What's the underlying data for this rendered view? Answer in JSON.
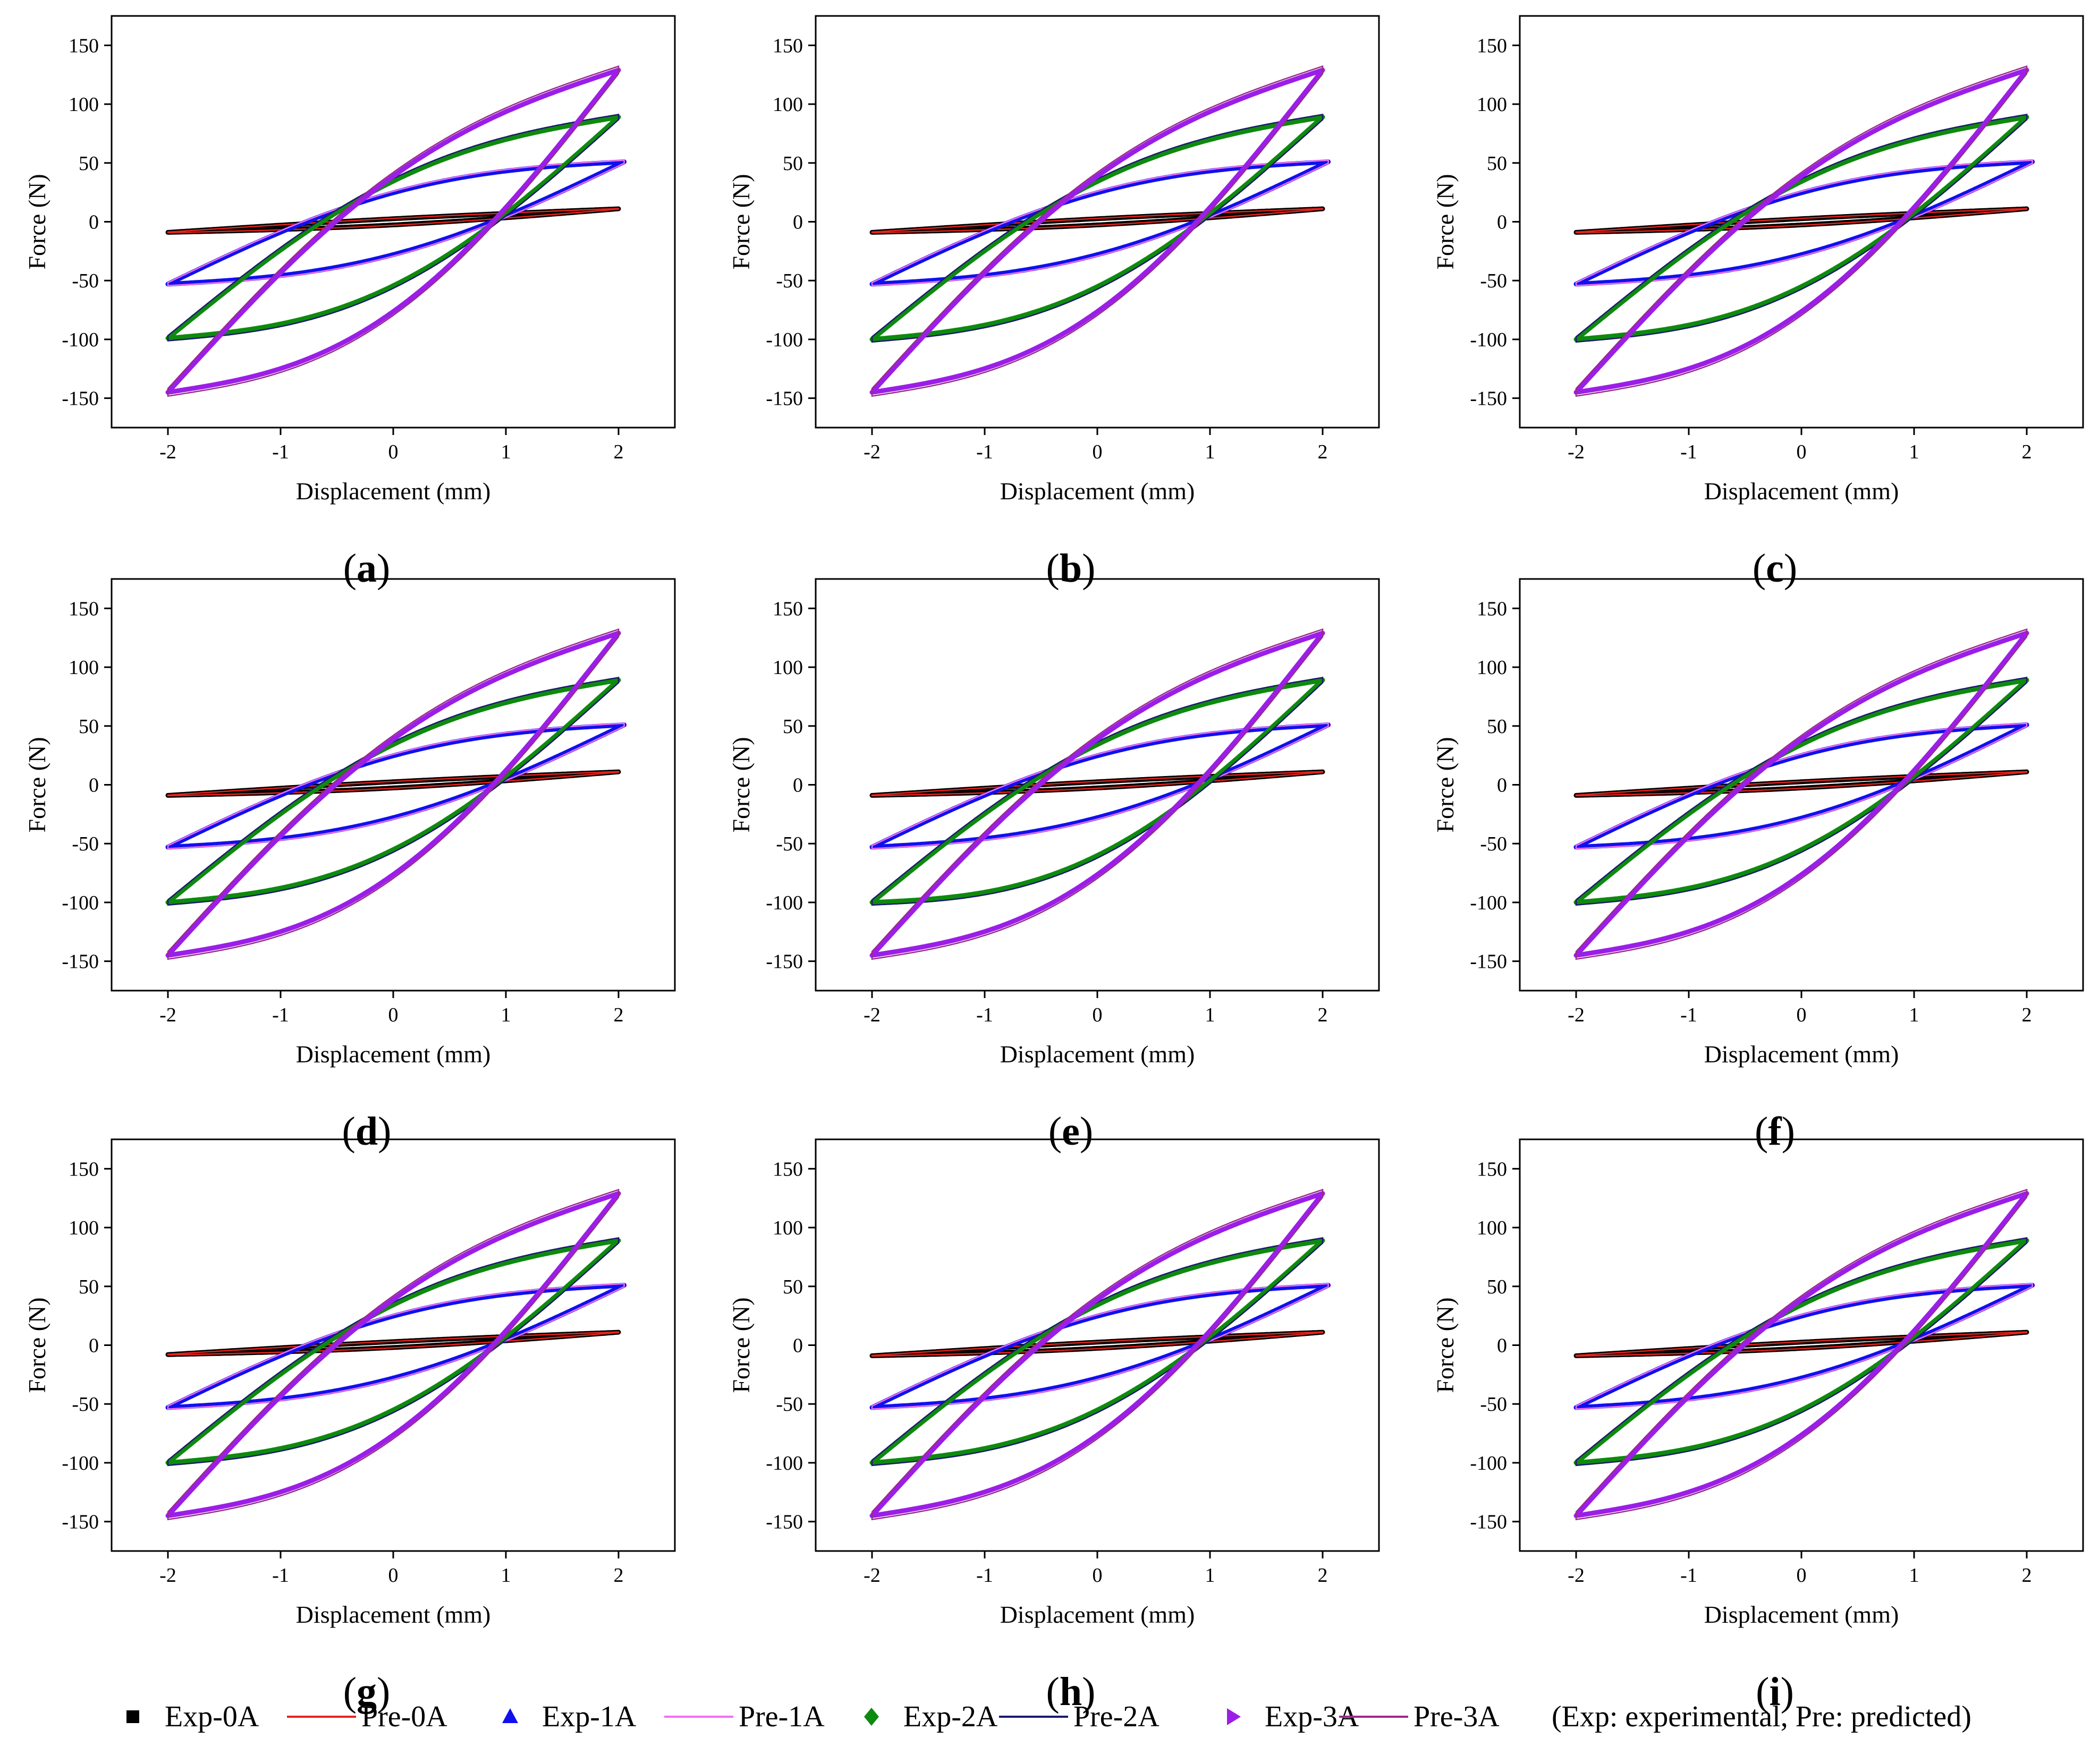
{
  "figure": {
    "legend": {
      "items": [
        {
          "label": "Exp-0A",
          "kind": "marker",
          "marker": "square",
          "color": "#000000"
        },
        {
          "label": "Pre-0A",
          "kind": "line",
          "color": "#e8231b"
        },
        {
          "label": "Exp-1A",
          "kind": "marker",
          "marker": "triangle-up",
          "color": "#1010ee"
        },
        {
          "label": "Pre-1A",
          "kind": "line",
          "color": "#f070f0"
        },
        {
          "label": "Exp-2A",
          "kind": "marker",
          "marker": "diamond",
          "color": "#0e8a0e"
        },
        {
          "label": "Pre-2A",
          "kind": "line",
          "color": "#1a1a6e"
        },
        {
          "label": "Exp-3A",
          "kind": "marker",
          "marker": "triangle-right",
          "color": "#9b1ee8"
        },
        {
          "label": "Pre-3A",
          "kind": "line",
          "color": "#9a2a8a"
        }
      ],
      "note": "(Exp: experimental, Pre: predicted)"
    }
  },
  "chart_data": [
    {
      "type": "line",
      "panel": "a",
      "label_open": "(",
      "label_letter": "a",
      "label_close": ")",
      "xlabel": "Displacement (mm)",
      "ylabel": "Force (N)",
      "xlim": [
        -2.5,
        2.5
      ],
      "ylim": [
        -175,
        175
      ],
      "xticks": [
        -2,
        -1,
        0,
        1,
        2
      ],
      "xtick_labels": [
        "-2",
        "-1",
        "0",
        "1",
        "2"
      ],
      "yticks": [
        -150,
        -100,
        -50,
        0,
        50,
        100,
        150
      ],
      "ytick_labels": [
        "-150",
        "-100",
        "-50",
        "0",
        "50",
        "100",
        "150"
      ],
      "series": [
        {
          "id": "0A",
          "x_min": -2.0,
          "x_max": 2.0,
          "f_min": -9,
          "f_max": 11,
          "zero_cross_up": -0.3,
          "zero_cross_down": 0.7,
          "exp_color": "#000000",
          "pre_color": "#e8231b"
        },
        {
          "id": "1A",
          "x_min": -2.0,
          "x_max": 2.05,
          "f_min": -53,
          "f_max": 51,
          "zero_cross_up": -0.95,
          "zero_cross_down": 1.0,
          "exp_color": "#1010ee",
          "pre_color": "#f070f0"
        },
        {
          "id": "2A",
          "x_min": -2.0,
          "x_max": 2.0,
          "f_min": -99,
          "f_max": 89,
          "zero_cross_up": -0.8,
          "zero_cross_down": 1.0,
          "exp_color": "#0e8a0e",
          "pre_color": "#1a1a6e"
        },
        {
          "id": "3A",
          "x_min": -2.0,
          "x_max": 2.0,
          "f_min": -145,
          "f_max": 129,
          "zero_cross_up": -0.65,
          "zero_cross_down": 0.95,
          "exp_color": "#9b1ee8",
          "pre_color": "#9a2a8a"
        }
      ]
    },
    {
      "type": "line",
      "panel": "b",
      "label_open": "(",
      "label_letter": "b",
      "label_close": ")",
      "xlabel": "Displacement (mm)",
      "ylabel": "Force (N)",
      "xlim": [
        -2.5,
        2.5
      ],
      "ylim": [
        -175,
        175
      ],
      "xticks": [
        -2,
        -1,
        0,
        1,
        2
      ],
      "xtick_labels": [
        "-2",
        "-1",
        "0",
        "1",
        "2"
      ],
      "yticks": [
        -150,
        -100,
        -50,
        0,
        50,
        100,
        150
      ],
      "ytick_labels": [
        "-150",
        "-100",
        "-50",
        "0",
        "50",
        "100",
        "150"
      ],
      "series": [
        {
          "id": "0A",
          "x_min": -2.0,
          "x_max": 2.0,
          "f_min": -9,
          "f_max": 11,
          "zero_cross_up": -0.3,
          "zero_cross_down": 0.7,
          "exp_color": "#000000",
          "pre_color": "#e8231b"
        },
        {
          "id": "1A",
          "x_min": -2.0,
          "x_max": 2.05,
          "f_min": -53,
          "f_max": 51,
          "zero_cross_up": -0.95,
          "zero_cross_down": 1.0,
          "exp_color": "#1010ee",
          "pre_color": "#f070f0"
        },
        {
          "id": "2A",
          "x_min": -2.0,
          "x_max": 2.0,
          "f_min": -100,
          "f_max": 89,
          "zero_cross_up": -0.8,
          "zero_cross_down": 1.0,
          "exp_color": "#0e8a0e",
          "pre_color": "#1a1a6e"
        },
        {
          "id": "3A",
          "x_min": -2.0,
          "x_max": 2.0,
          "f_min": -145,
          "f_max": 129,
          "zero_cross_up": -0.65,
          "zero_cross_down": 0.95,
          "exp_color": "#9b1ee8",
          "pre_color": "#9a2a8a"
        }
      ]
    },
    {
      "type": "line",
      "panel": "c",
      "label_open": "(",
      "label_letter": "c",
      "label_close": ")",
      "xlabel": "Displacement (mm)",
      "ylabel": "Force (N)",
      "xlim": [
        -2.5,
        2.5
      ],
      "ylim": [
        -175,
        175
      ],
      "xticks": [
        -2,
        -1,
        0,
        1,
        2
      ],
      "xtick_labels": [
        "-2",
        "-1",
        "0",
        "1",
        "2"
      ],
      "yticks": [
        -150,
        -100,
        -50,
        0,
        50,
        100,
        150
      ],
      "ytick_labels": [
        "-150",
        "-100",
        "-50",
        "0",
        "50",
        "100",
        "150"
      ],
      "series": [
        {
          "id": "0A",
          "x_min": -2.0,
          "x_max": 2.0,
          "f_min": -9,
          "f_max": 11,
          "zero_cross_up": -0.3,
          "zero_cross_down": 0.7,
          "exp_color": "#000000",
          "pre_color": "#e8231b"
        },
        {
          "id": "1A",
          "x_min": -2.0,
          "x_max": 2.05,
          "f_min": -53,
          "f_max": 51,
          "zero_cross_up": -0.95,
          "zero_cross_down": 1.0,
          "exp_color": "#1010ee",
          "pre_color": "#f070f0"
        },
        {
          "id": "2A",
          "x_min": -2.0,
          "x_max": 2.0,
          "f_min": -100,
          "f_max": 89,
          "zero_cross_up": -0.8,
          "zero_cross_down": 1.0,
          "exp_color": "#0e8a0e",
          "pre_color": "#1a1a6e"
        },
        {
          "id": "3A",
          "x_min": -2.0,
          "x_max": 2.0,
          "f_min": -145,
          "f_max": 129,
          "zero_cross_up": -0.65,
          "zero_cross_down": 0.95,
          "exp_color": "#9b1ee8",
          "pre_color": "#9a2a8a"
        }
      ]
    },
    {
      "type": "line",
      "panel": "d",
      "label_open": "(",
      "label_letter": "d",
      "label_close": ")",
      "xlabel": "Displacement (mm)",
      "ylabel": "Force (N)",
      "xlim": [
        -2.5,
        2.5
      ],
      "ylim": [
        -175,
        175
      ],
      "xticks": [
        -2,
        -1,
        0,
        1,
        2
      ],
      "xtick_labels": [
        "-2",
        "-1",
        "0",
        "1",
        "2"
      ],
      "yticks": [
        -150,
        -100,
        -50,
        0,
        50,
        100,
        150
      ],
      "ytick_labels": [
        "-150",
        "-100",
        "-50",
        "0",
        "50",
        "100",
        "150"
      ],
      "series": [
        {
          "id": "0A",
          "x_min": -2.0,
          "x_max": 2.0,
          "f_min": -9,
          "f_max": 11,
          "zero_cross_up": -0.3,
          "zero_cross_down": 0.7,
          "exp_color": "#000000",
          "pre_color": "#e8231b"
        },
        {
          "id": "1A",
          "x_min": -2.0,
          "x_max": 2.05,
          "f_min": -53,
          "f_max": 51,
          "zero_cross_up": -0.95,
          "zero_cross_down": 1.0,
          "exp_color": "#1010ee",
          "pre_color": "#f070f0"
        },
        {
          "id": "2A",
          "x_min": -2.0,
          "x_max": 2.0,
          "f_min": -100,
          "f_max": 89,
          "zero_cross_up": -0.8,
          "zero_cross_down": 1.0,
          "exp_color": "#0e8a0e",
          "pre_color": "#1a1a6e"
        },
        {
          "id": "3A",
          "x_min": -2.0,
          "x_max": 2.0,
          "f_min": -145,
          "f_max": 129,
          "zero_cross_up": -0.65,
          "zero_cross_down": 0.95,
          "exp_color": "#9b1ee8",
          "pre_color": "#9a2a8a"
        }
      ]
    },
    {
      "type": "line",
      "panel": "e",
      "label_open": "(",
      "label_letter": "e",
      "label_close": ")",
      "xlabel": "Displacement (mm)",
      "ylabel": "Force (N)",
      "xlim": [
        -2.5,
        2.5
      ],
      "ylim": [
        -175,
        175
      ],
      "xticks": [
        -2,
        -1,
        0,
        1,
        2
      ],
      "xtick_labels": [
        "-2",
        "-1",
        "0",
        "1",
        "2"
      ],
      "yticks": [
        -150,
        -100,
        -50,
        0,
        50,
        100,
        150
      ],
      "ytick_labels": [
        "-150",
        "-100",
        "-50",
        "0",
        "50",
        "100",
        "150"
      ],
      "series": [
        {
          "id": "0A",
          "x_min": -2.0,
          "x_max": 2.0,
          "f_min": -9,
          "f_max": 11,
          "zero_cross_up": -0.3,
          "zero_cross_down": 0.7,
          "exp_color": "#000000",
          "pre_color": "#e8231b"
        },
        {
          "id": "1A",
          "x_min": -2.0,
          "x_max": 2.05,
          "f_min": -53,
          "f_max": 51,
          "zero_cross_up": -0.95,
          "zero_cross_down": 1.0,
          "exp_color": "#1010ee",
          "pre_color": "#f070f0"
        },
        {
          "id": "2A",
          "x_min": -2.0,
          "x_max": 2.0,
          "f_min": -100,
          "f_max": 89,
          "zero_cross_up": -0.8,
          "zero_cross_down": 1.1,
          "exp_color": "#0e8a0e",
          "pre_color": "#1a1a6e"
        },
        {
          "id": "3A",
          "x_min": -2.0,
          "x_max": 2.0,
          "f_min": -145,
          "f_max": 129,
          "zero_cross_up": -0.65,
          "zero_cross_down": 0.95,
          "exp_color": "#9b1ee8",
          "pre_color": "#9a2a8a"
        }
      ]
    },
    {
      "type": "line",
      "panel": "f",
      "label_open": "(",
      "label_letter": "f",
      "label_close": ")",
      "xlabel": "Displacement (mm)",
      "ylabel": "Force (N)",
      "xlim": [
        -2.5,
        2.5
      ],
      "ylim": [
        -175,
        175
      ],
      "xticks": [
        -2,
        -1,
        0,
        1,
        2
      ],
      "xtick_labels": [
        "-2",
        "-1",
        "0",
        "1",
        "2"
      ],
      "yticks": [
        -150,
        -100,
        -50,
        0,
        50,
        100,
        150
      ],
      "ytick_labels": [
        "-150",
        "-100",
        "-50",
        "0",
        "50",
        "100",
        "150"
      ],
      "series": [
        {
          "id": "0A",
          "x_min": -2.0,
          "x_max": 2.0,
          "f_min": -9,
          "f_max": 11,
          "zero_cross_up": -0.3,
          "zero_cross_down": 0.7,
          "exp_color": "#000000",
          "pre_color": "#e8231b"
        },
        {
          "id": "1A",
          "x_min": -2.0,
          "x_max": 2.0,
          "f_min": -53,
          "f_max": 51,
          "zero_cross_up": -0.95,
          "zero_cross_down": 1.0,
          "exp_color": "#1010ee",
          "pre_color": "#f070f0"
        },
        {
          "id": "2A",
          "x_min": -2.0,
          "x_max": 2.0,
          "f_min": -100,
          "f_max": 89,
          "zero_cross_up": -0.8,
          "zero_cross_down": 1.0,
          "exp_color": "#0e8a0e",
          "pre_color": "#1a1a6e"
        },
        {
          "id": "3A",
          "x_min": -2.0,
          "x_max": 2.0,
          "f_min": -145,
          "f_max": 129,
          "zero_cross_up": -0.65,
          "zero_cross_down": 0.95,
          "exp_color": "#9b1ee8",
          "pre_color": "#9a2a8a"
        }
      ]
    },
    {
      "type": "line",
      "panel": "g",
      "label_open": "(",
      "label_letter": "g",
      "label_close": ")",
      "xlabel": "Displacement (mm)",
      "ylabel": "Force (N)",
      "xlim": [
        -2.5,
        2.5
      ],
      "ylim": [
        -175,
        175
      ],
      "xticks": [
        -2,
        -1,
        0,
        1,
        2
      ],
      "xtick_labels": [
        "-2",
        "-1",
        "0",
        "1",
        "2"
      ],
      "yticks": [
        -150,
        -100,
        -50,
        0,
        50,
        100,
        150
      ],
      "ytick_labels": [
        "-150",
        "-100",
        "-50",
        "0",
        "50",
        "100",
        "150"
      ],
      "series": [
        {
          "id": "0A",
          "x_min": -2.0,
          "x_max": 2.0,
          "f_min": -8,
          "f_max": 11,
          "zero_cross_up": -0.3,
          "zero_cross_down": 0.7,
          "exp_color": "#000000",
          "pre_color": "#e8231b"
        },
        {
          "id": "1A",
          "x_min": -2.0,
          "x_max": 2.05,
          "f_min": -53,
          "f_max": 51,
          "zero_cross_up": -0.95,
          "zero_cross_down": 1.0,
          "exp_color": "#1010ee",
          "pre_color": "#f070f0"
        },
        {
          "id": "2A",
          "x_min": -2.0,
          "x_max": 2.0,
          "f_min": -100,
          "f_max": 89,
          "zero_cross_up": -0.8,
          "zero_cross_down": 1.0,
          "exp_color": "#0e8a0e",
          "pre_color": "#1a1a6e"
        },
        {
          "id": "3A",
          "x_min": -2.0,
          "x_max": 2.0,
          "f_min": -145,
          "f_max": 129,
          "zero_cross_up": -0.65,
          "zero_cross_down": 0.95,
          "exp_color": "#9b1ee8",
          "pre_color": "#9a2a8a"
        }
      ]
    },
    {
      "type": "line",
      "panel": "h",
      "label_open": "(",
      "label_letter": "h",
      "label_close": ")",
      "xlabel": "Displacement (mm)",
      "ylabel": "Force (N)",
      "xlim": [
        -2.5,
        2.5
      ],
      "ylim": [
        -175,
        175
      ],
      "xticks": [
        -2,
        -1,
        0,
        1,
        2
      ],
      "xtick_labels": [
        "-2",
        "-1",
        "0",
        "1",
        "2"
      ],
      "yticks": [
        -150,
        -100,
        -50,
        0,
        50,
        100,
        150
      ],
      "ytick_labels": [
        "-150",
        "-100",
        "-50",
        "0",
        "50",
        "100",
        "150"
      ],
      "series": [
        {
          "id": "0A",
          "x_min": -2.0,
          "x_max": 2.0,
          "f_min": -9,
          "f_max": 11,
          "zero_cross_up": -0.3,
          "zero_cross_down": 0.7,
          "exp_color": "#000000",
          "pre_color": "#e8231b"
        },
        {
          "id": "1A",
          "x_min": -2.0,
          "x_max": 2.05,
          "f_min": -53,
          "f_max": 51,
          "zero_cross_up": -0.95,
          "zero_cross_down": 1.0,
          "exp_color": "#1010ee",
          "pre_color": "#f070f0"
        },
        {
          "id": "2A",
          "x_min": -2.0,
          "x_max": 2.0,
          "f_min": -100,
          "f_max": 89,
          "zero_cross_up": -0.8,
          "zero_cross_down": 1.0,
          "exp_color": "#0e8a0e",
          "pre_color": "#1a1a6e"
        },
        {
          "id": "3A",
          "x_min": -2.0,
          "x_max": 2.0,
          "f_min": -145,
          "f_max": 129,
          "zero_cross_up": -0.65,
          "zero_cross_down": 0.95,
          "exp_color": "#9b1ee8",
          "pre_color": "#9a2a8a"
        }
      ]
    },
    {
      "type": "line",
      "panel": "i",
      "label_open": "(",
      "label_letter": "i",
      "label_close": ")",
      "xlabel": "Displacement (mm)",
      "ylabel": "Force (N)",
      "xlim": [
        -2.5,
        2.5
      ],
      "ylim": [
        -175,
        175
      ],
      "xticks": [
        -2,
        -1,
        0,
        1,
        2
      ],
      "xtick_labels": [
        "-2",
        "-1",
        "0",
        "1",
        "2"
      ],
      "yticks": [
        -150,
        -100,
        -50,
        0,
        50,
        100,
        150
      ],
      "ytick_labels": [
        "-150",
        "-100",
        "-50",
        "0",
        "50",
        "100",
        "150"
      ],
      "series": [
        {
          "id": "0A",
          "x_min": -2.0,
          "x_max": 2.0,
          "f_min": -9,
          "f_max": 11,
          "zero_cross_up": -0.3,
          "zero_cross_down": 0.7,
          "exp_color": "#000000",
          "pre_color": "#e8231b"
        },
        {
          "id": "1A",
          "x_min": -2.0,
          "x_max": 2.05,
          "f_min": -53,
          "f_max": 51,
          "zero_cross_up": -0.95,
          "zero_cross_down": 1.0,
          "exp_color": "#1010ee",
          "pre_color": "#f070f0"
        },
        {
          "id": "2A",
          "x_min": -2.0,
          "x_max": 2.0,
          "f_min": -100,
          "f_max": 89,
          "zero_cross_up": -0.8,
          "zero_cross_down": 1.0,
          "exp_color": "#0e8a0e",
          "pre_color": "#1a1a6e"
        },
        {
          "id": "3A",
          "x_min": -2.0,
          "x_max": 2.0,
          "f_min": -145,
          "f_max": 129,
          "zero_cross_up": -0.65,
          "zero_cross_down": 0.95,
          "exp_color": "#9b1ee8",
          "pre_color": "#9a2a8a"
        }
      ]
    }
  ]
}
